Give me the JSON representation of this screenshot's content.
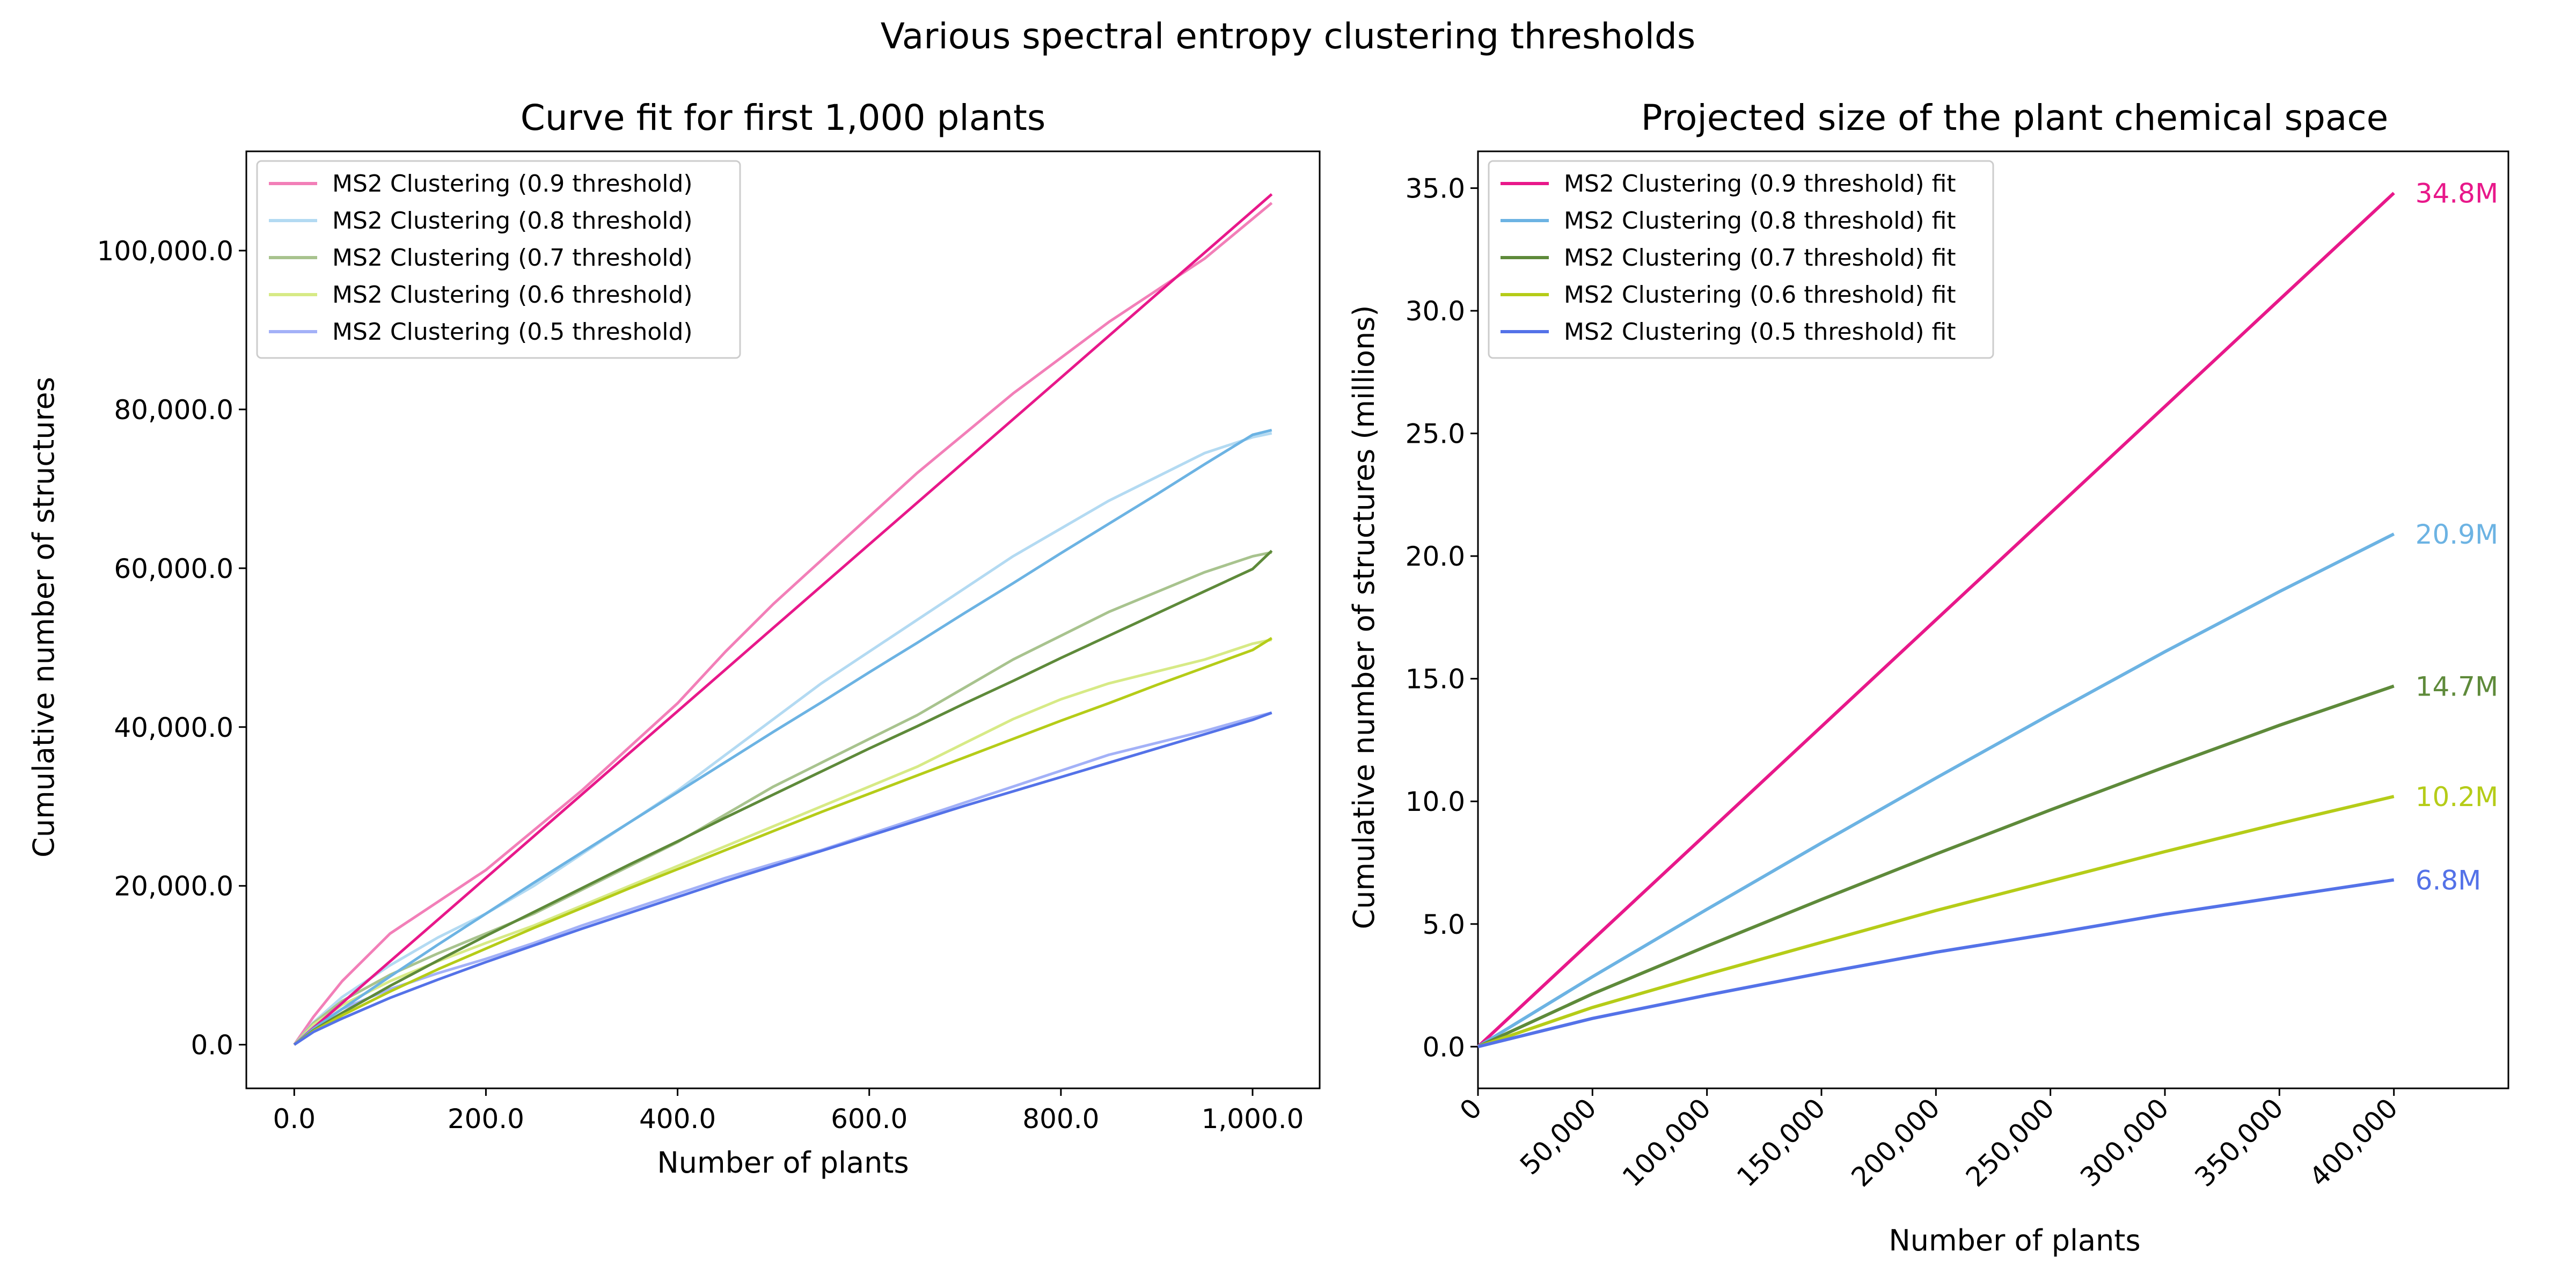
{
  "figure": {
    "title": "Various spectral entropy clustering thresholds"
  },
  "chart_data": [
    {
      "type": "line",
      "title": "Curve fit for first 1,000 plants",
      "xlabel": "Number of plants",
      "ylabel": "Cumulative number of structures",
      "xlim": [
        -50,
        1070
      ],
      "ylim": [
        -5500,
        112500
      ],
      "xticks": [
        0,
        200,
        400,
        600,
        800,
        1000
      ],
      "xtick_labels": [
        "0.0",
        "200.0",
        "400.0",
        "600.0",
        "800.0",
        "1,000.0"
      ],
      "yticks": [
        0,
        20000,
        40000,
        60000,
        80000,
        100000
      ],
      "ytick_labels": [
        "0.0",
        "20,000.0",
        "40,000.0",
        "60,000.0",
        "80,000.0",
        "100,000.0"
      ],
      "legend": "upper-left",
      "grid": false,
      "x": [
        0,
        20,
        50,
        100,
        150,
        200,
        250,
        300,
        350,
        400,
        450,
        500,
        550,
        600,
        650,
        700,
        750,
        800,
        850,
        900,
        950,
        1000,
        1020
      ],
      "series": [
        {
          "name": "MS2 Clustering (0.9 threshold)",
          "color": "#f27fb8",
          "observed": [
            0,
            3500,
            8000,
            14000,
            18000,
            22000,
            27000,
            32000,
            37500,
            43000,
            49500,
            55500,
            61000,
            66500,
            72000,
            77000,
            82000,
            86500,
            91000,
            95000,
            99000,
            104000,
            106000
          ],
          "fit": [
            0,
            2100,
            5250,
            10500,
            15750,
            21000,
            26250,
            31500,
            36750,
            42000,
            47250,
            52500,
            57750,
            63000,
            68250,
            73500,
            78750,
            84000,
            89250,
            94500,
            99750,
            105000,
            107100
          ]
        },
        {
          "name": "MS2 Clustering (0.8 threshold)",
          "color": "#b3daf2",
          "observed": [
            0,
            2800,
            6000,
            10000,
            13500,
            16500,
            20000,
            24000,
            28000,
            32000,
            36500,
            41000,
            45500,
            49500,
            53500,
            57500,
            61500,
            65000,
            68500,
            71500,
            74500,
            76500,
            77000
          ],
          "fit": [
            0,
            2000,
            4500,
            8600,
            12600,
            16500,
            20400,
            24200,
            28000,
            31800,
            35600,
            39400,
            43100,
            46900,
            50600,
            54400,
            58100,
            61900,
            65600,
            69300,
            73100,
            76800,
            77400
          ]
        },
        {
          "name": "MS2 Clustering (0.7 threshold)",
          "color": "#a8c38e",
          "observed": [
            0,
            2700,
            5500,
            8800,
            11500,
            14000,
            16500,
            19500,
            22500,
            25500,
            29000,
            32500,
            35500,
            38500,
            41500,
            45000,
            48500,
            51500,
            54500,
            57000,
            59500,
            61500,
            62000
          ],
          "fit": [
            0,
            1800,
            4000,
            7400,
            10600,
            13700,
            16700,
            19700,
            22700,
            25600,
            28600,
            31500,
            34400,
            37300,
            40100,
            43000,
            45800,
            48700,
            51500,
            54300,
            57100,
            59900,
            62200
          ]
        },
        {
          "name": "MS2 Clustering (0.6 threshold)",
          "color": "#d7ea86",
          "observed": [
            0,
            2500,
            5000,
            8000,
            10500,
            12800,
            15000,
            17500,
            20000,
            22500,
            25000,
            27500,
            30000,
            32500,
            35000,
            38000,
            41000,
            43500,
            45500,
            47000,
            48500,
            50500,
            51000
          ],
          "fit": [
            0,
            1700,
            3700,
            6700,
            9500,
            12100,
            14700,
            17200,
            19700,
            22100,
            24500,
            26900,
            29300,
            31600,
            33900,
            36200,
            38500,
            40800,
            43000,
            45300,
            47500,
            49700,
            51200
          ]
        },
        {
          "name": "MS2 Clustering (0.5 threshold)",
          "color": "#a3b1f7",
          "observed": [
            0,
            2200,
            4500,
            7000,
            9000,
            10800,
            12800,
            15000,
            17000,
            19000,
            21000,
            22800,
            24500,
            26500,
            28500,
            30500,
            32500,
            34500,
            36500,
            38000,
            39500,
            41200,
            41800
          ],
          "fit": [
            0,
            1600,
            3300,
            5900,
            8200,
            10400,
            12500,
            14600,
            16600,
            18600,
            20600,
            22500,
            24400,
            26300,
            28200,
            30100,
            31900,
            33700,
            35500,
            37300,
            39100,
            40900,
            41800
          ]
        }
      ],
      "fit_colors": [
        "#e8188a",
        "#6cb3e3",
        "#5e8a3a",
        "#b5cc18",
        "#5472e8"
      ]
    },
    {
      "type": "line",
      "title": "Projected size of the plant chemical space",
      "xlabel": "Number of plants",
      "ylabel": "Cumulative number of structures (millions)",
      "xlim": [
        0,
        450000
      ],
      "ylim": [
        -1.7,
        36.5
      ],
      "xticks": [
        0,
        50000,
        100000,
        150000,
        200000,
        250000,
        300000,
        350000,
        400000
      ],
      "xtick_labels": [
        "0",
        "50,000",
        "100,000",
        "150,000",
        "200,000",
        "250,000",
        "300,000",
        "350,000",
        "400,000"
      ],
      "yticks": [
        0,
        5,
        10,
        15,
        20,
        25,
        30,
        35
      ],
      "ytick_labels": [
        "0.0",
        "5.0",
        "10.0",
        "15.0",
        "20.0",
        "25.0",
        "30.0",
        "35.0"
      ],
      "legend": "upper-left",
      "grid": false,
      "x": [
        0,
        50000,
        100000,
        150000,
        200000,
        250000,
        300000,
        350000,
        400000
      ],
      "series": [
        {
          "name": "MS2 Clustering (0.9 threshold) fit",
          "color": "#e8188a",
          "values": [
            0,
            4.35,
            8.7,
            13.05,
            17.4,
            21.75,
            26.1,
            30.45,
            34.8
          ],
          "end_label": "34.8M"
        },
        {
          "name": "MS2 Clustering (0.8 threshold) fit",
          "color": "#6cb3e3",
          "values": [
            0,
            2.85,
            5.6,
            8.3,
            10.95,
            13.55,
            16.1,
            18.55,
            20.9
          ],
          "end_label": "20.9M"
        },
        {
          "name": "MS2 Clustering (0.7 threshold) fit",
          "color": "#5e8a3a",
          "values": [
            0,
            2.15,
            4.1,
            6.0,
            7.85,
            9.65,
            11.4,
            13.1,
            14.7
          ],
          "end_label": "14.7M"
        },
        {
          "name": "MS2 Clustering (0.6 threshold) fit",
          "color": "#b5cc18",
          "values": [
            0,
            1.6,
            2.95,
            4.25,
            5.55,
            6.75,
            7.95,
            9.1,
            10.2
          ],
          "end_label": "10.2M"
        },
        {
          "name": "MS2 Clustering (0.5 threshold) fit",
          "color": "#5472e8",
          "values": [
            0,
            1.15,
            2.1,
            3.0,
            3.85,
            4.6,
            5.4,
            6.1,
            6.8
          ],
          "end_label": "6.8M"
        }
      ]
    }
  ]
}
